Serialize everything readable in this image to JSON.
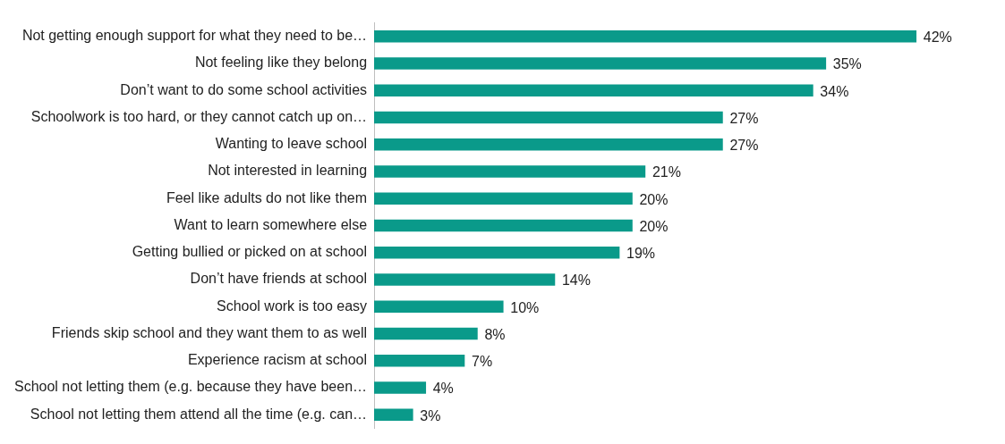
{
  "chart_data": {
    "type": "bar",
    "orientation": "horizontal",
    "categories": [
      "Not getting enough support for what they need to be…",
      "Not feeling like they belong",
      "Don’t want to do some school activities",
      "Schoolwork is too hard, or they cannot catch up on…",
      "Wanting to leave school",
      "Not interested in learning",
      "Feel like adults do not like them",
      "Want to learn somewhere else",
      "Getting bullied or picked on at school",
      "Don’t have friends at school",
      "School work is too easy",
      "Friends skip school and they want them to as well",
      "Experience racism at school",
      "School not letting them (e.g. because they have been…",
      "School not letting them attend all the time (e.g. can…"
    ],
    "values": [
      42,
      35,
      34,
      27,
      27,
      21,
      20,
      20,
      19,
      14,
      10,
      8,
      7,
      4,
      3
    ],
    "value_labels": [
      "42%",
      "35%",
      "34%",
      "27%",
      "27%",
      "21%",
      "20%",
      "20%",
      "19%",
      "14%",
      "10%",
      "8%",
      "7%",
      "4%",
      "3%"
    ],
    "color": "#0a9a8a",
    "tick_labels": "y",
    "grid": false,
    "legend": false
  }
}
